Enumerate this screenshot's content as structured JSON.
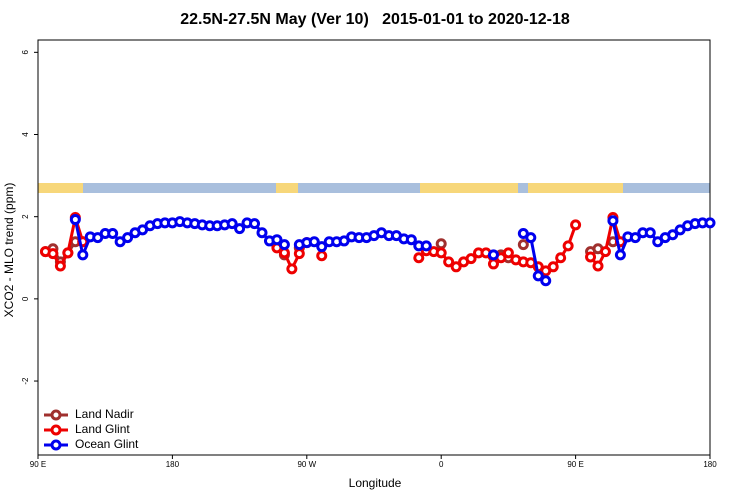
{
  "chart_data": {
    "type": "line",
    "title": "22.5N-27.5N May (Ver 10)   2015-01-01 to 2020-12-18",
    "x_label": "Longitude",
    "y_label": "XCO2 - MLO trend (ppm)",
    "x": [
      95,
      100,
      105,
      110,
      115,
      120,
      125,
      130,
      135,
      140,
      145,
      150,
      155,
      160,
      165,
      170,
      175,
      180,
      185,
      190,
      195,
      200,
      205,
      210,
      215,
      220,
      225,
      230,
      235,
      240,
      245,
      250,
      255,
      260,
      265,
      270,
      275,
      280,
      285,
      290,
      295,
      300,
      305,
      310,
      315,
      320,
      325,
      330,
      335,
      340,
      345,
      350,
      355,
      360,
      365,
      370,
      375,
      380,
      385,
      390,
      395,
      400,
      405,
      410,
      415,
      420,
      425,
      430,
      435,
      440,
      445,
      450,
      455,
      460,
      465,
      470,
      475,
      480,
      485,
      490,
      495,
      500,
      505,
      510,
      515,
      520,
      525,
      530,
      535,
      540
    ],
    "xlim": [
      90,
      540
    ],
    "xticks": [
      {
        "value": 90,
        "label": "90 E"
      },
      180,
      {
        "value": 270,
        "label": "90 W"
      },
      {
        "value": 360,
        "label": "0"
      },
      {
        "value": 450,
        "label": "90 E"
      },
      {
        "value": 540,
        "label": "180"
      }
    ],
    "ylim": [
      -3.8,
      6.3
    ],
    "yticks": [
      -2,
      0,
      2,
      4,
      6
    ],
    "legend_position": "bottom-left",
    "series": [
      {
        "name": "Land Nadir",
        "color": "#a0302e",
        "values": [
          1.15,
          1.22,
          0.9,
          1.12,
          1.39,
          1.39,
          null,
          null,
          null,
          null,
          null,
          null,
          null,
          null,
          null,
          null,
          null,
          null,
          null,
          null,
          null,
          null,
          null,
          null,
          null,
          null,
          null,
          null,
          null,
          null,
          null,
          1.27,
          1.07,
          null,
          1.24,
          null,
          null,
          null,
          null,
          null,
          null,
          null,
          null,
          null,
          null,
          null,
          null,
          null,
          null,
          null,
          null,
          null,
          null,
          1.34,
          null,
          null,
          null,
          null,
          null,
          null,
          null,
          1.07,
          1.0,
          null,
          1.32,
          null,
          null,
          null,
          null,
          null,
          null,
          null,
          null,
          1.15,
          1.22,
          null,
          1.39,
          null,
          null,
          null,
          null,
          null,
          null,
          null,
          null,
          null,
          null,
          null,
          null,
          null
        ]
      },
      {
        "name": "Land Glint",
        "color": "#ee0000",
        "values": [
          1.15,
          1.1,
          0.8,
          1.12,
          1.98,
          1.39,
          null,
          null,
          null,
          null,
          null,
          null,
          null,
          null,
          null,
          null,
          null,
          null,
          null,
          null,
          null,
          null,
          null,
          null,
          null,
          null,
          null,
          null,
          null,
          null,
          null,
          1.24,
          1.12,
          0.73,
          1.1,
          1.37,
          null,
          1.05,
          null,
          null,
          null,
          null,
          null,
          null,
          null,
          null,
          null,
          null,
          null,
          null,
          1.0,
          1.17,
          1.15,
          1.12,
          0.9,
          0.78,
          0.9,
          0.98,
          1.12,
          1.12,
          0.85,
          1.0,
          1.12,
          0.95,
          0.9,
          0.88,
          0.78,
          0.68,
          0.78,
          1.0,
          1.29,
          1.8,
          null,
          1.02,
          0.8,
          1.15,
          1.98,
          1.39,
          null,
          null,
          null,
          null,
          null,
          null,
          null,
          null,
          null,
          null,
          null,
          null
        ]
      },
      {
        "name": "Ocean Glint",
        "color": "#0000ee",
        "values": [
          null,
          null,
          null,
          null,
          1.93,
          1.07,
          1.51,
          1.49,
          1.59,
          1.59,
          1.39,
          1.49,
          1.61,
          1.68,
          1.78,
          1.83,
          1.85,
          1.85,
          1.88,
          1.85,
          1.83,
          1.8,
          1.78,
          1.78,
          1.8,
          1.83,
          1.71,
          1.85,
          1.83,
          1.61,
          1.41,
          1.44,
          1.32,
          null,
          1.32,
          1.37,
          1.39,
          1.27,
          1.39,
          1.39,
          1.41,
          1.51,
          1.49,
          1.49,
          1.54,
          1.61,
          1.54,
          1.54,
          1.46,
          1.44,
          1.29,
          1.29,
          null,
          null,
          null,
          null,
          null,
          null,
          null,
          null,
          1.07,
          null,
          null,
          null,
          1.59,
          1.49,
          0.56,
          0.44,
          null,
          null,
          null,
          null,
          null,
          null,
          null,
          null,
          1.9,
          1.07,
          1.51,
          1.49,
          1.61,
          1.61,
          1.39,
          1.49,
          1.56,
          1.68,
          1.78,
          1.83,
          1.85,
          1.85
        ]
      }
    ]
  }
}
